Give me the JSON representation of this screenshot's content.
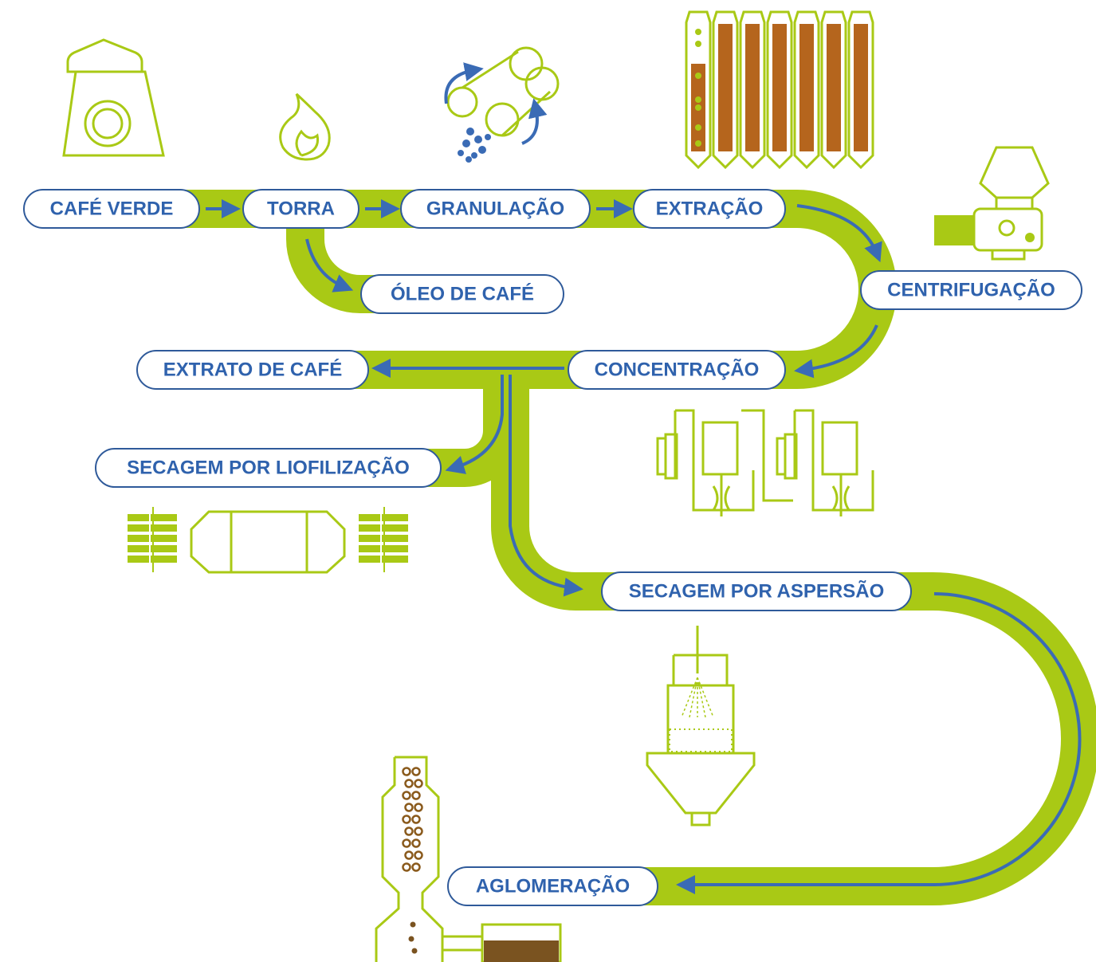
{
  "nodes": [
    {
      "label": "CAFÉ VERDE"
    },
    {
      "label": "TORRA"
    },
    {
      "label": "GRANULAÇÃO"
    },
    {
      "label": "EXTRAÇÃO"
    },
    {
      "label": "CENTRIFUGAÇÃO"
    },
    {
      "label": "ÓLEO DE CAFÉ"
    },
    {
      "label": "CONCENTRAÇÃO"
    },
    {
      "label": "EXTRATO DE CAFÉ"
    },
    {
      "label": "SECAGEM POR LIOFILIZAÇÃO"
    },
    {
      "label": "SECAGEM POR ASPERSÃO"
    },
    {
      "label": "AGLOMERAÇÃO"
    }
  ]
}
